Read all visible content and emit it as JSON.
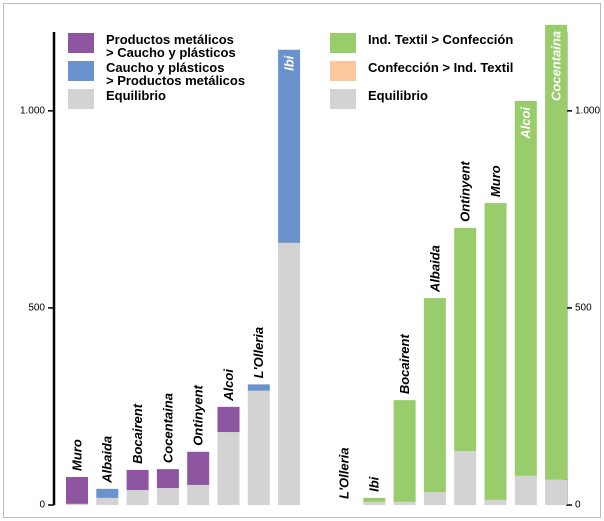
{
  "chart_data": [
    {
      "type": "stacked-bar",
      "yaxis": "left",
      "categories": [
        "Muro",
        "Albaida",
        "Bocairent",
        "Cocentaina",
        "Ontinyent",
        "Alcoi",
        "L'Olleria",
        "Ibi"
      ],
      "series": [
        {
          "name": "Equilibrio",
          "color": "#d3d3d3",
          "values": [
            3,
            18,
            38,
            43,
            51,
            185,
            290,
            665
          ]
        },
        {
          "name": "Productos metálicos\n> Caucho y plásticos",
          "color": "#8e55a0",
          "values": [
            68,
            0,
            51,
            48,
            84,
            64,
            0,
            0
          ]
        },
        {
          "name": "Caucho y plásticos\n> Productos metálicos",
          "color": "#6a92cd",
          "values": [
            0,
            23,
            0,
            0,
            0,
            0,
            16,
            490
          ]
        }
      ],
      "legend_order": [
        1,
        2,
        0
      ],
      "ylim": [
        0,
        1200
      ],
      "yticks": [
        0,
        500,
        {
          "value": 1000,
          "label": "1.000"
        }
      ]
    },
    {
      "type": "stacked-bar",
      "yaxis": "right",
      "categories": [
        "L'Olleria",
        "Ibi",
        "Bocairent",
        "Albaida",
        "Ontinyent",
        "Muro",
        "Alcoi",
        "Cocentaina"
      ],
      "series": [
        {
          "name": "Equilibrio",
          "color": "#d3d3d3",
          "values": [
            0,
            8,
            8,
            33,
            137,
            13,
            74,
            64
          ]
        },
        {
          "name": "Ind.  Textil > Confección",
          "color": "#99cc6b",
          "values": [
            0,
            10,
            258,
            492,
            566,
            753,
            951,
            1154
          ]
        },
        {
          "name": "Confección > Ind. Textil",
          "color": "#fcc89b",
          "values": [
            0,
            0,
            0,
            0,
            0,
            0,
            0,
            0
          ]
        }
      ],
      "legend_order": [
        1,
        2,
        0
      ],
      "ylim": [
        0,
        1200
      ],
      "yticks": [
        0,
        500,
        {
          "value": 1000,
          "label": "1.000"
        }
      ]
    }
  ]
}
